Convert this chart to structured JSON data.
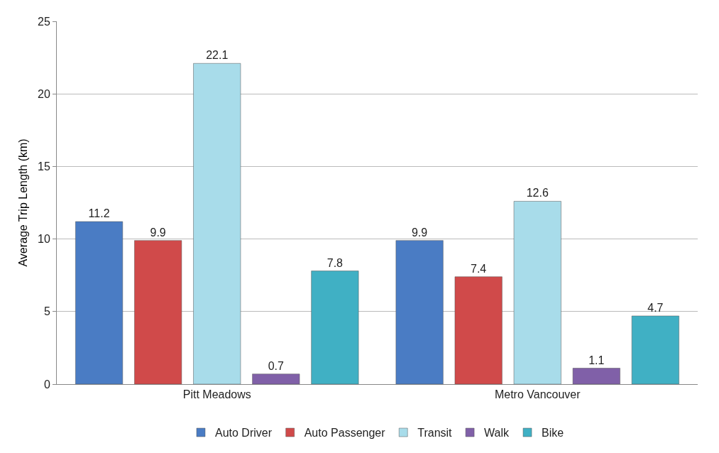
{
  "chart_data": {
    "type": "bar",
    "ylabel": "Average Trip Length (km)",
    "categories": [
      "Pitt Meadows",
      "Metro Vancouver"
    ],
    "series": [
      {
        "name": "Auto Driver",
        "color": "#4a7cc4",
        "values": [
          11.2,
          9.9
        ]
      },
      {
        "name": "Auto Passenger",
        "color": "#d04a4a",
        "values": [
          9.9,
          7.4
        ]
      },
      {
        "name": "Transit",
        "color": "#a8dcea",
        "values": [
          22.1,
          12.6
        ]
      },
      {
        "name": "Walk",
        "color": "#8060a8",
        "values": [
          0.7,
          1.1
        ]
      },
      {
        "name": "Bike",
        "color": "#40b0c4",
        "values": [
          7.8,
          4.7
        ]
      }
    ],
    "ylim": [
      0,
      25
    ],
    "yticks": [
      0,
      5,
      10,
      15,
      20,
      25
    ],
    "grid": "y",
    "legend": "bottom",
    "data_labels": true
  }
}
